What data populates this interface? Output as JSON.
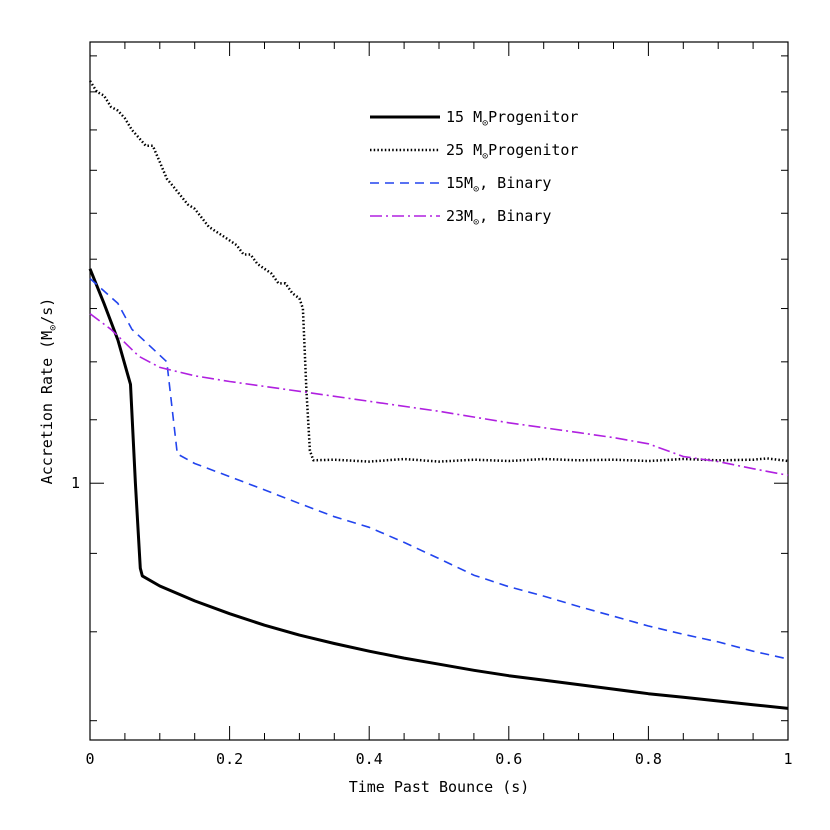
{
  "chart_data": {
    "type": "line",
    "title": "",
    "xlabel": "Time Past Bounce (s)",
    "ylabel": {
      "text": "Accretion Rate (M",
      "sub": "⊙",
      "tail": "/s)"
    },
    "xscale": "linear",
    "yscale": "log",
    "xlim": [
      0,
      1
    ],
    "ylim": [
      0.68,
      1.94
    ],
    "xticks": [
      0,
      0.2,
      0.4,
      0.6,
      0.8,
      1
    ],
    "xtick_labels": [
      "0",
      "0.2",
      "0.4",
      "0.6",
      "0.8",
      "1"
    ],
    "yticks": [
      1
    ],
    "ytick_labels": [
      "1"
    ],
    "legend_position": "top-right",
    "series": [
      {
        "name": "15 M⊙Progenitor",
        "legend": {
          "pre": "15 M",
          "sub": "⊙",
          "post": "Progenitor"
        },
        "color": "#000000",
        "style": "solid",
        "width": 3,
        "x": [
          0,
          0.02,
          0.04,
          0.058,
          0.065,
          0.072,
          0.075,
          0.1,
          0.15,
          0.2,
          0.25,
          0.3,
          0.35,
          0.4,
          0.45,
          0.5,
          0.55,
          0.6,
          0.65,
          0.7,
          0.75,
          0.8,
          0.85,
          0.9,
          0.95,
          1.0
        ],
        "y": [
          1.38,
          1.31,
          1.24,
          1.16,
          1.0,
          0.88,
          0.87,
          0.857,
          0.838,
          0.822,
          0.808,
          0.796,
          0.786,
          0.777,
          0.769,
          0.762,
          0.755,
          0.749,
          0.744,
          0.739,
          0.734,
          0.729,
          0.725,
          0.721,
          0.717,
          0.713
        ]
      },
      {
        "name": "25 M⊙Progenitor",
        "legend": {
          "pre": "25 M",
          "sub": "⊙",
          "post": "Progenitor"
        },
        "color": "#000000",
        "style": "dotted",
        "width": 2.5,
        "x": [
          0,
          0.01,
          0.02,
          0.03,
          0.04,
          0.05,
          0.06,
          0.07,
          0.08,
          0.09,
          0.1,
          0.11,
          0.12,
          0.13,
          0.14,
          0.15,
          0.16,
          0.17,
          0.18,
          0.19,
          0.2,
          0.21,
          0.22,
          0.23,
          0.24,
          0.25,
          0.26,
          0.27,
          0.28,
          0.29,
          0.3,
          0.305,
          0.31,
          0.315,
          0.32,
          0.35,
          0.4,
          0.45,
          0.5,
          0.55,
          0.6,
          0.65,
          0.7,
          0.75,
          0.8,
          0.85,
          0.9,
          0.95,
          0.97,
          1.0
        ],
        "y": [
          1.83,
          1.8,
          1.79,
          1.76,
          1.75,
          1.73,
          1.7,
          1.68,
          1.66,
          1.66,
          1.62,
          1.58,
          1.56,
          1.54,
          1.52,
          1.51,
          1.49,
          1.47,
          1.46,
          1.45,
          1.44,
          1.43,
          1.41,
          1.41,
          1.39,
          1.38,
          1.37,
          1.35,
          1.35,
          1.33,
          1.32,
          1.3,
          1.15,
          1.05,
          1.035,
          1.036,
          1.033,
          1.037,
          1.033,
          1.036,
          1.034,
          1.037,
          1.035,
          1.036,
          1.034,
          1.037,
          1.035,
          1.036,
          1.038,
          1.034
        ]
      },
      {
        "name": "15M⊙, Binary",
        "legend": {
          "pre": "15M",
          "sub": "⊙",
          "post": ", Binary"
        },
        "color": "#2244ee",
        "style": "dashed",
        "width": 1.6,
        "x": [
          0,
          0.04,
          0.06,
          0.085,
          0.11,
          0.125,
          0.15,
          0.2,
          0.25,
          0.3,
          0.35,
          0.4,
          0.45,
          0.5,
          0.55,
          0.6,
          0.65,
          0.7,
          0.75,
          0.8,
          0.85,
          0.9,
          0.95,
          1.0
        ],
        "y": [
          1.36,
          1.31,
          1.26,
          1.23,
          1.2,
          1.045,
          1.03,
          1.01,
          0.99,
          0.97,
          0.951,
          0.936,
          0.915,
          0.893,
          0.871,
          0.856,
          0.844,
          0.831,
          0.819,
          0.807,
          0.797,
          0.788,
          0.777,
          0.768
        ]
      },
      {
        "name": "23M⊙, Binary",
        "legend": {
          "pre": "23M",
          "sub": "⊙",
          "post": ", Binary"
        },
        "color": "#b020e0",
        "style": "dashdot",
        "width": 1.6,
        "x": [
          0,
          0.03,
          0.05,
          0.07,
          0.1,
          0.15,
          0.2,
          0.3,
          0.4,
          0.5,
          0.6,
          0.7,
          0.75,
          0.8,
          0.85,
          0.9,
          0.95,
          1.0
        ],
        "y": [
          1.29,
          1.26,
          1.235,
          1.21,
          1.19,
          1.175,
          1.165,
          1.148,
          1.131,
          1.114,
          1.095,
          1.079,
          1.071,
          1.061,
          1.041,
          1.033,
          1.022,
          1.012
        ]
      }
    ]
  }
}
